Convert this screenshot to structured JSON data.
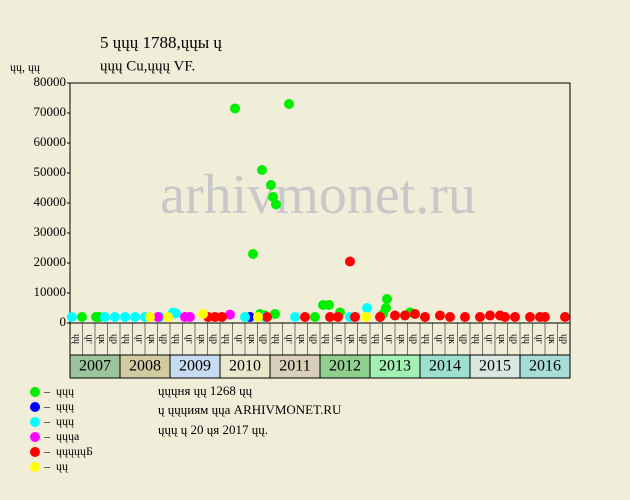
{
  "chart_data": {
    "type": "scatter",
    "title": "5 ųųų 1788,ųųы ų",
    "subtitle": "ųųų Cu,ųųų VF.",
    "y_label": "ųų, ųų",
    "watermark": "arhivmonet.ru",
    "notes": [
      "ųųųня ųų 1268 ųų",
      "ų ųųųиям ųųа ARHIVMONET.RU",
      "ųųų ų 20 ųя 2017 ųų."
    ],
    "xlim": [
      2007,
      2017
    ],
    "xticks": [
      {
        "value": 2007,
        "label": "2007"
      },
      {
        "value": 2008,
        "label": "2008"
      },
      {
        "value": 2009,
        "label": "2009"
      },
      {
        "value": 2010,
        "label": "2010"
      },
      {
        "value": 2011,
        "label": "2011"
      },
      {
        "value": 2012,
        "label": "2012"
      },
      {
        "value": 2013,
        "label": "2013"
      },
      {
        "value": 2014,
        "label": "2014"
      },
      {
        "value": 2015,
        "label": "2015"
      },
      {
        "value": 2016,
        "label": "2016"
      }
    ],
    "year_colors": [
      "#9cc49c",
      "#d2cba2",
      "#c6dcf0",
      "#ebe7cb",
      "#d9ceb9",
      "#8fd08f",
      "#a3f0b3",
      "#9ee0d0",
      "#d8e8e0",
      "#a8dcd8"
    ],
    "quarter_labels": [
      "ųų",
      "ųг",
      "ųк",
      "ųр"
    ],
    "ylim": [
      0,
      80000
    ],
    "yticks": [
      0,
      10000,
      20000,
      30000,
      40000,
      50000,
      60000,
      70000,
      80000
    ],
    "grid": false,
    "series": [
      {
        "name": "ųųų",
        "color": "#00ee00",
        "x": [
          2010.3,
          2011.38,
          2010.84,
          2011.02,
          2011.06,
          2011.12,
          2010.66,
          2012.06,
          2012.18,
          2013.34,
          2013.32,
          2007.24,
          2007.52,
          2007.58,
          2010.8,
          2010.9,
          2011.1,
          2011.9,
          2012.4,
          2013.26,
          2013.8
        ],
        "values": [
          71500,
          73000,
          51000,
          46000,
          42000,
          39500,
          23000,
          6000,
          6000,
          8000,
          5000,
          2000,
          2000,
          2000,
          3000,
          2500,
          3000,
          2000,
          3500,
          3000,
          3500
        ]
      },
      {
        "name": "ųųų",
        "color": "#0000ff",
        "x": [
          2010.6
        ],
        "values": [
          2000
        ]
      },
      {
        "name": "ųųų",
        "color": "#00ffff",
        "x": [
          2007.04,
          2007.7,
          2007.9,
          2008.1,
          2008.3,
          2008.5,
          2008.8,
          2009.06,
          2009.12,
          2010.5,
          2010.9,
          2011.5,
          2012.6,
          2012.7,
          2012.94
        ],
        "values": [
          2000,
          2000,
          2000,
          2000,
          2000,
          2000,
          2000,
          3500,
          3200,
          2000,
          2000,
          2000,
          2000,
          2000,
          5000
        ]
      },
      {
        "name": "ųųųа",
        "color": "#ff00ff",
        "x": [
          2008.76,
          2009.3,
          2009.4,
          2010.2
        ],
        "values": [
          2000,
          2000,
          2000,
          2800
        ]
      },
      {
        "name": "ųųųųųБ",
        "color": "#ff0000",
        "x": [
          2009.76,
          2009.9,
          2010.04,
          2010.94,
          2011.7,
          2012.2,
          2012.36,
          2012.6,
          2012.7,
          2013.2,
          2013.5,
          2013.7,
          2013.9,
          2014.1,
          2014.4,
          2014.6,
          2014.9,
          2015.2,
          2015.4,
          2015.6,
          2015.7,
          2015.9,
          2016.2,
          2016.4,
          2016.5,
          2016.9
        ],
        "values": [
          2000,
          2000,
          2000,
          2000,
          2000,
          2000,
          2000,
          20500,
          2000,
          2000,
          2500,
          2500,
          3000,
          2000,
          2500,
          2000,
          2000,
          2000,
          2500,
          2500,
          2000,
          2000,
          2000,
          2000,
          2000,
          2000
        ]
      },
      {
        "name": "ųų",
        "color": "#ffff00",
        "x": [
          2008.6,
          2008.96,
          2009.66,
          2010.76,
          2012.92
        ],
        "values": [
          2000,
          2000,
          3000,
          2000,
          2000
        ]
      }
    ]
  }
}
